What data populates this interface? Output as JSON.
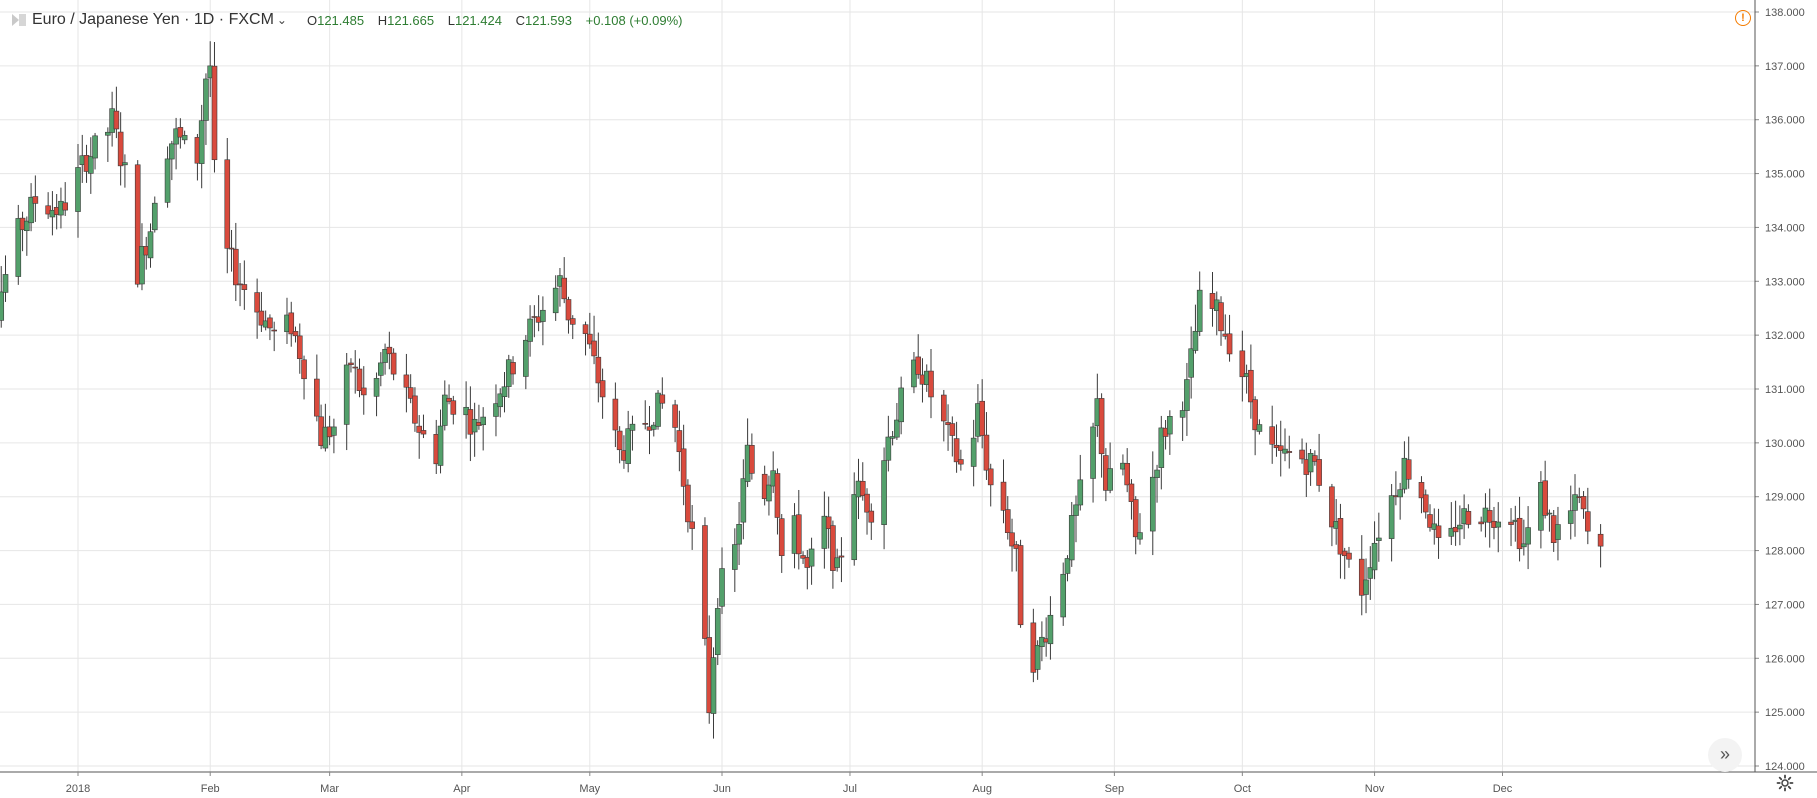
{
  "legend": {
    "symbol": "Euro / Japanese Yen · 1D · FXCM",
    "open_label": "O",
    "open": "121.485",
    "high_label": "H",
    "high": "121.665",
    "low_label": "L",
    "low": "121.424",
    "close_label": "C",
    "close": "121.593",
    "change": "+0.108 (+0.09%)"
  },
  "colors": {
    "up": "#53a06b",
    "down": "#d94a3d",
    "grid": "#e6e6e6",
    "text": "#555555",
    "accent": "#f57c00"
  },
  "icons": {
    "alert": "alert-icon",
    "scroll": "scroll-right-icon",
    "settings": "gear-icon"
  },
  "alert_glyph": "!",
  "scroll_glyph": "»",
  "chart_data": {
    "type": "candlestick",
    "ylim": [
      124.0,
      138.0
    ],
    "y_ticks": [
      "124.000",
      "125.000",
      "126.000",
      "127.000",
      "128.000",
      "129.000",
      "130.000",
      "131.000",
      "132.000",
      "133.000",
      "134.000",
      "135.000",
      "136.000",
      "137.000",
      "138.000"
    ],
    "x_ticks": [
      {
        "label": "2018",
        "date": "2018-01-01"
      },
      {
        "label": "Feb",
        "date": "2018-02-01"
      },
      {
        "label": "Mar",
        "date": "2018-03-01"
      },
      {
        "label": "Apr",
        "date": "2018-04-01"
      },
      {
        "label": "May",
        "date": "2018-05-01"
      },
      {
        "label": "Jun",
        "date": "2018-06-01"
      },
      {
        "label": "Jul",
        "date": "2018-07-01"
      },
      {
        "label": "Aug",
        "date": "2018-08-01"
      },
      {
        "label": "Sep",
        "date": "2018-09-01"
      },
      {
        "label": "Oct",
        "date": "2018-10-01"
      },
      {
        "label": "Nov",
        "date": "2018-11-01"
      },
      {
        "label": "Dec",
        "date": "2018-12-01"
      }
    ],
    "x_range": [
      "2017-12-06",
      "2018-12-31"
    ],
    "grid": true,
    "anchors": [
      [
        "2017-12-06",
        133.2
      ],
      [
        "2017-12-12",
        132.3
      ],
      [
        "2017-12-18",
        133.9
      ],
      [
        "2017-12-22",
        134.5
      ],
      [
        "2017-12-28",
        134.3
      ],
      [
        "2018-01-03",
        135.3
      ],
      [
        "2018-01-07",
        135.6
      ],
      [
        "2018-01-09",
        136.0
      ],
      [
        "2018-01-12",
        135.0
      ],
      [
        "2018-01-15",
        133.2
      ],
      [
        "2018-01-18",
        134.0
      ],
      [
        "2018-01-20",
        135.3
      ],
      [
        "2018-01-24",
        135.7
      ],
      [
        "2018-01-26",
        135.5
      ],
      [
        "2018-01-29",
        135.3
      ],
      [
        "2018-01-31",
        136.8
      ],
      [
        "2018-02-01",
        137.0
      ],
      [
        "2018-02-02",
        135.0
      ],
      [
        "2018-02-05",
        133.5
      ],
      [
        "2018-02-08",
        133.0
      ],
      [
        "2018-02-12",
        132.5
      ],
      [
        "2018-02-16",
        132.0
      ],
      [
        "2018-02-20",
        132.2
      ],
      [
        "2018-02-24",
        131.2
      ],
      [
        "2018-02-27",
        130.1
      ],
      [
        "2018-03-02",
        130.3
      ],
      [
        "2018-03-06",
        131.5
      ],
      [
        "2018-03-10",
        130.6
      ],
      [
        "2018-03-14",
        131.7
      ],
      [
        "2018-03-19",
        130.8
      ],
      [
        "2018-03-23",
        130.1
      ],
      [
        "2018-03-25",
        129.3
      ],
      [
        "2018-03-28",
        130.8
      ],
      [
        "2018-04-01",
        130.7
      ],
      [
        "2018-04-04",
        130.3
      ],
      [
        "2018-04-08",
        130.8
      ],
      [
        "2018-04-12",
        131.3
      ],
      [
        "2018-04-16",
        132.0
      ],
      [
        "2018-04-20",
        132.5
      ],
      [
        "2018-04-24",
        133.0
      ],
      [
        "2018-04-26",
        132.4
      ],
      [
        "2018-04-30",
        132.0
      ],
      [
        "2018-05-04",
        130.9
      ],
      [
        "2018-05-08",
        129.8
      ],
      [
        "2018-05-12",
        130.2
      ],
      [
        "2018-05-16",
        130.6
      ],
      [
        "2018-05-20",
        130.8
      ],
      [
        "2018-05-24",
        128.8
      ],
      [
        "2018-05-27",
        127.2
      ],
      [
        "2018-05-29",
        125.1
      ],
      [
        "2018-05-31",
        127.2
      ],
      [
        "2018-06-04",
        128.0
      ],
      [
        "2018-06-07",
        129.8
      ],
      [
        "2018-06-10",
        128.8
      ],
      [
        "2018-06-13",
        129.7
      ],
      [
        "2018-06-15",
        127.9
      ],
      [
        "2018-06-18",
        128.4
      ],
      [
        "2018-06-21",
        127.6
      ],
      [
        "2018-06-25",
        128.5
      ],
      [
        "2018-06-28",
        127.6
      ],
      [
        "2018-07-02",
        129.2
      ],
      [
        "2018-07-06",
        128.8
      ],
      [
        "2018-07-10",
        130.1
      ],
      [
        "2018-07-14",
        131.0
      ],
      [
        "2018-07-17",
        131.5
      ],
      [
        "2018-07-21",
        130.7
      ],
      [
        "2018-07-25",
        129.9
      ],
      [
        "2018-07-28",
        129.4
      ],
      [
        "2018-07-31",
        130.6
      ],
      [
        "2018-08-03",
        129.2
      ],
      [
        "2018-08-06",
        128.8
      ],
      [
        "2018-08-09",
        127.8
      ],
      [
        "2018-08-11",
        125.8
      ],
      [
        "2018-08-14",
        126.1
      ],
      [
        "2018-08-18",
        127.0
      ],
      [
        "2018-08-22",
        128.4
      ],
      [
        "2018-08-26",
        129.7
      ],
      [
        "2018-08-28",
        130.7
      ],
      [
        "2018-08-30",
        129.2
      ],
      [
        "2018-09-03",
        129.6
      ],
      [
        "2018-09-06",
        128.2
      ],
      [
        "2018-09-09",
        129.0
      ],
      [
        "2018-09-12",
        130.1
      ],
      [
        "2018-09-15",
        130.6
      ],
      [
        "2018-09-18",
        131.0
      ],
      [
        "2018-09-21",
        132.6
      ],
      [
        "2018-09-25",
        132.4
      ],
      [
        "2018-09-28",
        131.9
      ],
      [
        "2018-10-02",
        131.1
      ],
      [
        "2018-10-05",
        130.2
      ],
      [
        "2018-10-09",
        129.7
      ],
      [
        "2018-10-13",
        129.8
      ],
      [
        "2018-10-18",
        129.6
      ],
      [
        "2018-10-22",
        128.6
      ],
      [
        "2018-10-26",
        127.7
      ],
      [
        "2018-10-29",
        127.3
      ],
      [
        "2018-11-01",
        128.2
      ],
      [
        "2018-11-05",
        129.0
      ],
      [
        "2018-11-08",
        129.6
      ],
      [
        "2018-11-11",
        129.3
      ],
      [
        "2018-11-14",
        128.6
      ],
      [
        "2018-11-17",
        127.7
      ],
      [
        "2018-11-20",
        128.5
      ],
      [
        "2018-11-23",
        128.7
      ],
      [
        "2018-11-28",
        128.7
      ],
      [
        "2018-12-03",
        128.7
      ],
      [
        "2018-12-06",
        128.1
      ],
      [
        "2018-12-10",
        129.1
      ],
      [
        "2018-12-13",
        128.3
      ],
      [
        "2018-12-17",
        128.7
      ],
      [
        "2018-12-19",
        128.9
      ],
      [
        "2018-12-22",
        128.0
      ],
      [
        "2018-12-24",
        127.9
      ]
    ]
  }
}
